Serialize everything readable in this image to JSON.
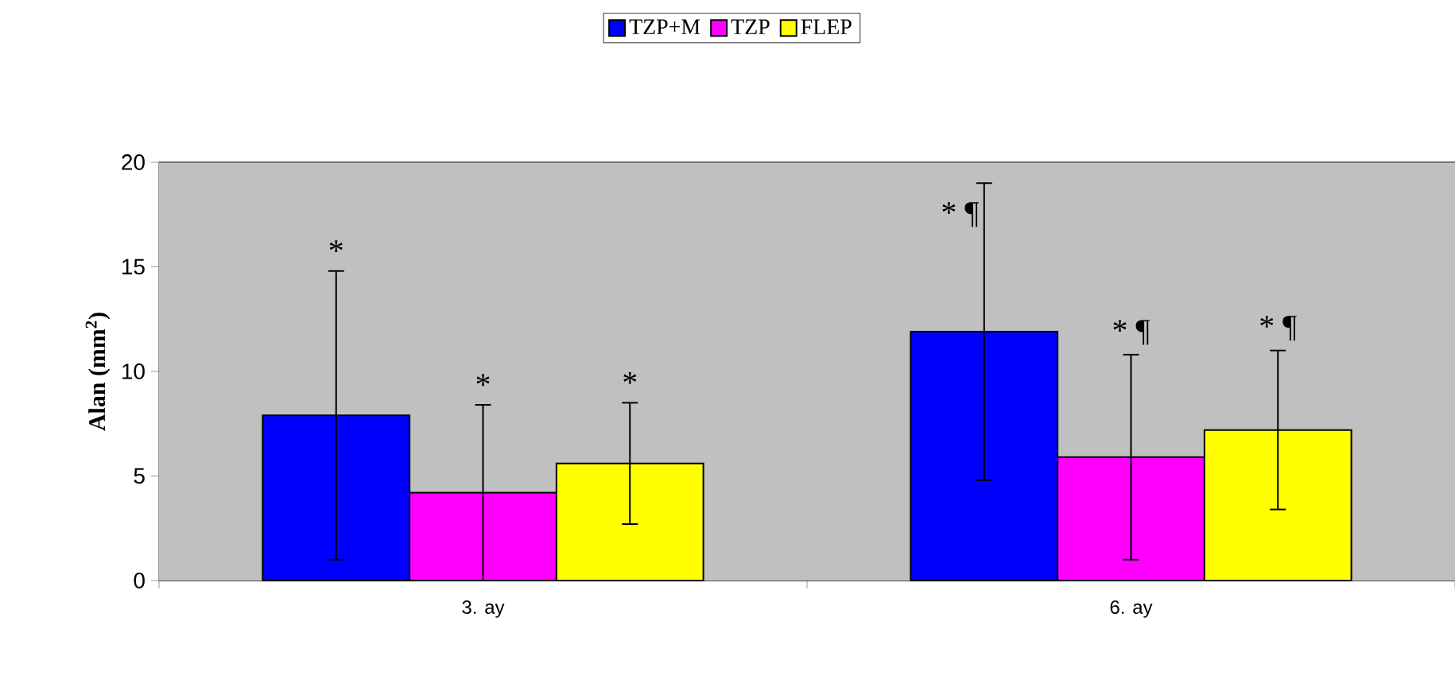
{
  "chart_data": {
    "type": "bar",
    "ylabel": "Alan (mm$^{2}$)",
    "categories": [
      "3. ay",
      "6. ay"
    ],
    "series": [
      {
        "name": "TZP+M",
        "color": "#0000ff",
        "values": [
          7.9,
          11.9
        ],
        "errors": [
          6.9,
          7.1
        ]
      },
      {
        "name": "TZP",
        "color": "#ff00ff",
        "values": [
          4.2,
          5.9
        ],
        "errors": [
          4.2,
          4.9
        ]
      },
      {
        "name": "FLEP",
        "color": "#ffff00",
        "values": [
          5.6,
          7.2
        ],
        "errors": [
          2.9,
          3.8
        ]
      }
    ],
    "annotations": [
      "*",
      "*",
      "*",
      "* ¶",
      "* ¶",
      "* ¶"
    ],
    "ylim": [
      0,
      20
    ],
    "yticks": [
      0,
      5,
      10,
      15,
      20
    ],
    "grid": "y",
    "legend": "top"
  }
}
